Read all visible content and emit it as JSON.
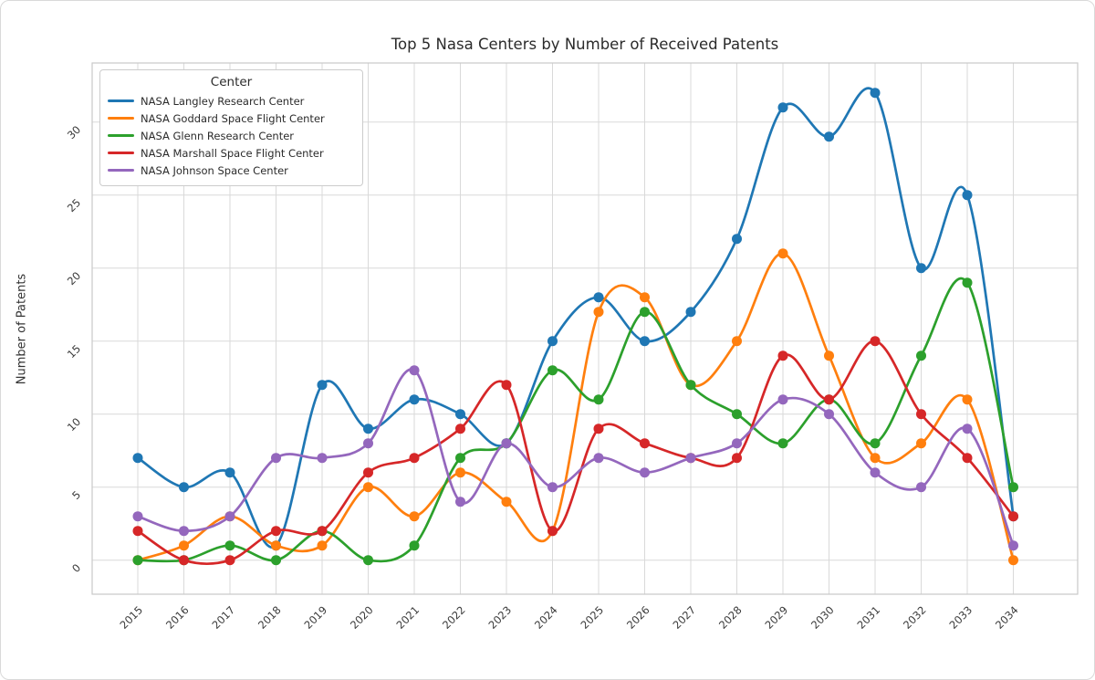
{
  "figure": {
    "title": "Top 5 Nasa Centers by Number of Received Patents",
    "ylabel": "Number of Patents",
    "legend_title": "Center"
  },
  "chart_data": {
    "type": "line",
    "title": "Top 5 Nasa Centers by Number of Received Patents",
    "xlabel": "",
    "ylabel": "Number of Patents",
    "legend_title": "Center",
    "legend_position": "upper left",
    "grid": true,
    "smooth_lines": true,
    "markers": "circle",
    "x": [
      2015,
      2016,
      2017,
      2018,
      2019,
      2020,
      2021,
      2022,
      2023,
      2024,
      2025,
      2026,
      2027,
      2028,
      2029,
      2030,
      2031,
      2032,
      2033,
      2034
    ],
    "yticks": [
      0,
      5,
      10,
      15,
      20,
      25,
      30
    ],
    "ylim": [
      -2.3,
      34.0
    ],
    "series": [
      {
        "name": "NASA Langley Research Center",
        "color": "#1f77b4",
        "values": [
          7,
          5,
          6,
          1,
          12,
          9,
          11,
          10,
          8,
          15,
          18,
          15,
          17,
          22,
          31,
          29,
          32,
          20,
          25,
          3
        ]
      },
      {
        "name": "NASA Goddard Space Flight Center",
        "color": "#ff7f0e",
        "values": [
          0,
          1,
          3,
          1,
          1,
          5,
          3,
          6,
          4,
          2,
          17,
          18,
          12,
          15,
          21,
          14,
          7,
          8,
          11,
          0
        ]
      },
      {
        "name": "NASA Glenn Research Center",
        "color": "#2ca02c",
        "values": [
          0,
          0,
          1,
          0,
          2,
          0,
          1,
          7,
          8,
          13,
          11,
          17,
          12,
          10,
          8,
          11,
          8,
          14,
          19,
          5
        ]
      },
      {
        "name": "NASA Marshall Space Flight Center",
        "color": "#d62728",
        "values": [
          2,
          0,
          0,
          2,
          2,
          6,
          7,
          9,
          12,
          2,
          9,
          8,
          7,
          7,
          14,
          11,
          15,
          10,
          7,
          3
        ]
      },
      {
        "name": "NASA Johnson Space Center",
        "color": "#9467bd",
        "values": [
          3,
          2,
          3,
          7,
          7,
          8,
          13,
          4,
          8,
          5,
          7,
          6,
          7,
          8,
          11,
          10,
          6,
          5,
          9,
          1
        ]
      }
    ],
    "tick_color": "#3a3a3a",
    "grid_color": "#d9d9d9",
    "spine_color": "#c9c9c9"
  }
}
